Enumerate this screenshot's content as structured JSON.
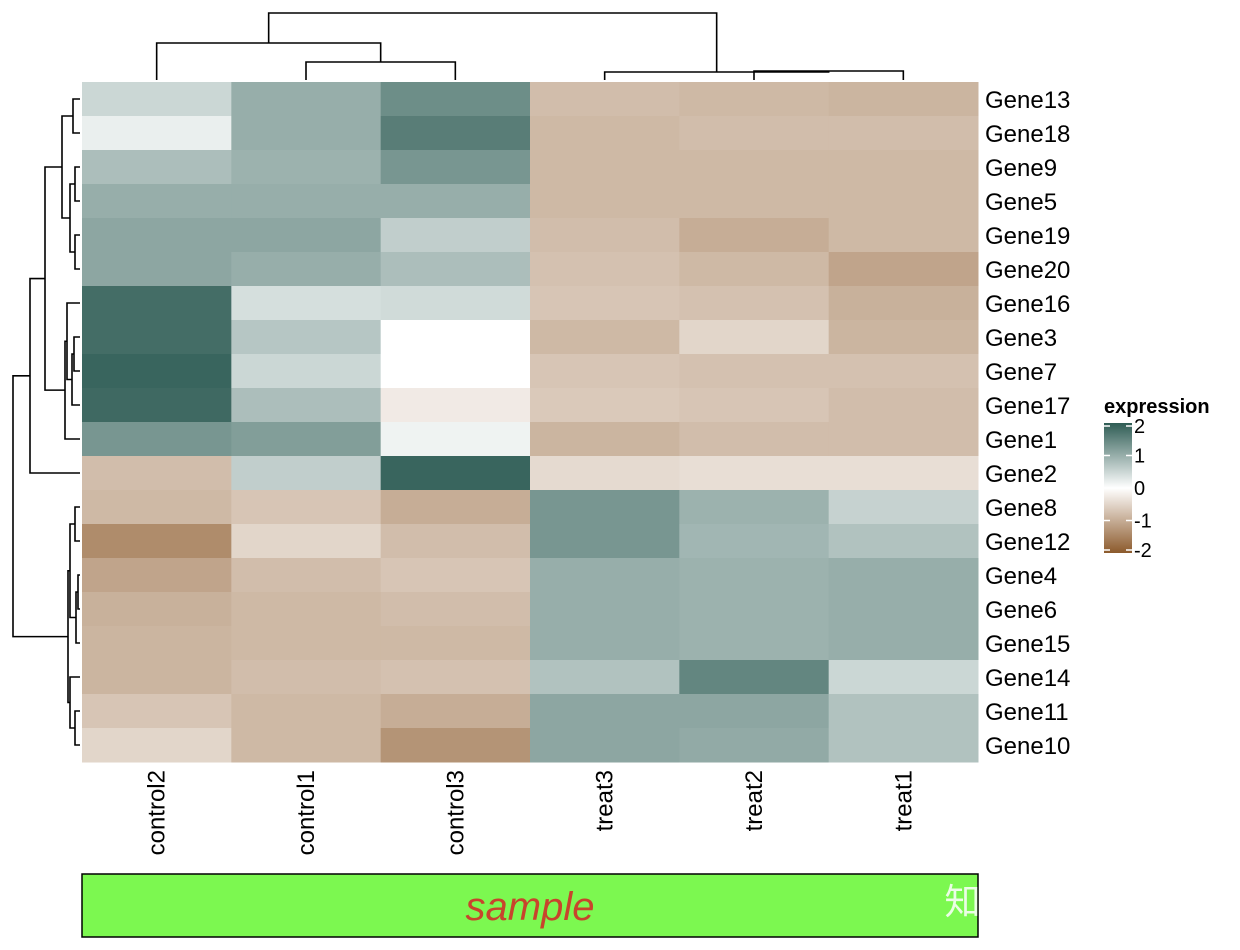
{
  "chart_data": {
    "type": "heatmap",
    "columns": [
      "control2",
      "control1",
      "control3",
      "treat3",
      "treat2",
      "treat1"
    ],
    "rows": [
      "Gene13",
      "Gene18",
      "Gene9",
      "Gene5",
      "Gene19",
      "Gene20",
      "Gene16",
      "Gene3",
      "Gene7",
      "Gene17",
      "Gene1",
      "Gene2",
      "Gene8",
      "Gene12",
      "Gene4",
      "Gene6",
      "Gene15",
      "Gene14",
      "Gene11",
      "Gene10"
    ],
    "values": [
      [
        0.5,
        1.0,
        1.4,
        -0.8,
        -0.85,
        -0.9
      ],
      [
        0.2,
        1.0,
        1.6,
        -0.85,
        -0.8,
        -0.8
      ],
      [
        0.8,
        0.95,
        1.3,
        -0.85,
        -0.85,
        -0.85
      ],
      [
        1.0,
        1.0,
        1.0,
        -0.85,
        -0.85,
        -0.85
      ],
      [
        1.1,
        1.1,
        0.6,
        -0.8,
        -1.0,
        -0.85
      ],
      [
        1.1,
        1.0,
        0.8,
        -0.75,
        -0.85,
        -1.1
      ],
      [
        1.8,
        0.4,
        0.45,
        -0.7,
        -0.75,
        -0.95
      ],
      [
        1.8,
        0.7,
        0.0,
        -0.85,
        -0.5,
        -0.9
      ],
      [
        1.9,
        0.5,
        0.0,
        -0.7,
        -0.75,
        -0.75
      ],
      [
        1.85,
        0.8,
        -0.25,
        -0.65,
        -0.7,
        -0.8
      ],
      [
        1.3,
        1.2,
        0.15,
        -0.9,
        -0.8,
        -0.8
      ],
      [
        -0.8,
        0.6,
        1.9,
        -0.45,
        -0.4,
        -0.4
      ],
      [
        -0.85,
        -0.7,
        -1.0,
        1.3,
        0.95,
        0.55
      ],
      [
        -1.4,
        -0.5,
        -0.8,
        1.3,
        0.9,
        0.75
      ],
      [
        -1.1,
        -0.8,
        -0.7,
        1.0,
        0.95,
        1.0
      ],
      [
        -0.95,
        -0.85,
        -0.8,
        1.0,
        0.95,
        1.0
      ],
      [
        -0.9,
        -0.85,
        -0.85,
        1.0,
        0.95,
        1.0
      ],
      [
        -0.9,
        -0.8,
        -0.75,
        0.75,
        1.5,
        0.5
      ],
      [
        -0.7,
        -0.85,
        -1.0,
        1.1,
        1.1,
        0.75
      ],
      [
        -0.5,
        -0.85,
        -1.3,
        1.1,
        1.05,
        0.75
      ]
    ],
    "color_scale": {
      "min": -2,
      "max": 2,
      "low_color": "#8c5a2c",
      "mid_color": "#ffffff",
      "high_color": "#2f5d55"
    },
    "legend": {
      "title": "expression",
      "ticks": [
        "2",
        "1",
        "0",
        "-1",
        "-2"
      ],
      "tick_values": [
        2,
        1,
        0,
        -1,
        -2
      ],
      "placement": "right"
    },
    "row_dendrogram": true,
    "column_dendrogram": true,
    "annotation": {
      "label": "sample",
      "color": "#7cf850",
      "label_color": "#c8442c"
    }
  },
  "watermark": "知乎 @名本无名"
}
